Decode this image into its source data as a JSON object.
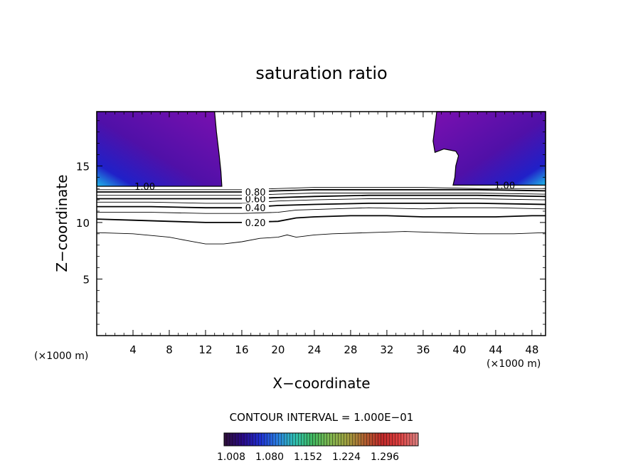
{
  "chart_data": {
    "type": "contour",
    "title": "saturation ratio",
    "xlabel": "X−coordinate",
    "ylabel": "Z−coordinate",
    "x_unit": "(×1000 m)",
    "y_unit": "(×1000 m)",
    "xlim": [
      0,
      49.5
    ],
    "ylim": [
      0,
      19.8
    ],
    "x_ticks": [
      "4",
      "8",
      "12",
      "16",
      "20",
      "24",
      "28",
      "32",
      "36",
      "40",
      "44",
      "48"
    ],
    "y_ticks": [
      "5",
      "10",
      "15"
    ],
    "contour_interval_text": "CONTOUR INTERVAL = 1.000E−01",
    "contour_lines": [
      {
        "value": 0.1,
        "points": [
          [
            0,
            9.1
          ],
          [
            4,
            9.0
          ],
          [
            8,
            8.7
          ],
          [
            10,
            8.4
          ],
          [
            12,
            8.1
          ],
          [
            14,
            8.1
          ],
          [
            16,
            8.3
          ],
          [
            18,
            8.6
          ],
          [
            20,
            8.7
          ],
          [
            21,
            8.9
          ],
          [
            22,
            8.7
          ],
          [
            24,
            8.9
          ],
          [
            26,
            9.0
          ],
          [
            30,
            9.1
          ],
          [
            34,
            9.2
          ],
          [
            38,
            9.1
          ],
          [
            42,
            9.0
          ],
          [
            46,
            9.0
          ],
          [
            49.5,
            9.1
          ]
        ]
      },
      {
        "value": 0.2,
        "points": [
          [
            0,
            10.3
          ],
          [
            4,
            10.2
          ],
          [
            8,
            10.1
          ],
          [
            12,
            10.0
          ],
          [
            16,
            10.0
          ],
          [
            20,
            10.1
          ],
          [
            22,
            10.4
          ],
          [
            24,
            10.5
          ],
          [
            28,
            10.6
          ],
          [
            32,
            10.6
          ],
          [
            36,
            10.5
          ],
          [
            40,
            10.5
          ],
          [
            44,
            10.5
          ],
          [
            48,
            10.6
          ],
          [
            49.5,
            10.6
          ]
        ]
      },
      {
        "value": 0.3,
        "points": [
          [
            0,
            10.9
          ],
          [
            6,
            10.9
          ],
          [
            12,
            10.8
          ],
          [
            16,
            10.8
          ],
          [
            20,
            10.9
          ],
          [
            22,
            11.1
          ],
          [
            26,
            11.2
          ],
          [
            30,
            11.3
          ],
          [
            36,
            11.2
          ],
          [
            40,
            11.3
          ],
          [
            44,
            11.3
          ],
          [
            49.5,
            11.2
          ]
        ]
      },
      {
        "value": 0.4,
        "points": [
          [
            0,
            11.4
          ],
          [
            6,
            11.4
          ],
          [
            12,
            11.3
          ],
          [
            16,
            11.3
          ],
          [
            20,
            11.5
          ],
          [
            24,
            11.6
          ],
          [
            30,
            11.7
          ],
          [
            36,
            11.7
          ],
          [
            42,
            11.7
          ],
          [
            49.5,
            11.6
          ]
        ]
      },
      {
        "value": 0.5,
        "points": [
          [
            0,
            11.8
          ],
          [
            6,
            11.8
          ],
          [
            12,
            11.7
          ],
          [
            16,
            11.7
          ],
          [
            20,
            11.9
          ],
          [
            24,
            12.0
          ],
          [
            30,
            12.1
          ],
          [
            36,
            12.1
          ],
          [
            42,
            12.1
          ],
          [
            49.5,
            12.0
          ]
        ]
      },
      {
        "value": 0.6,
        "points": [
          [
            0,
            12.1
          ],
          [
            6,
            12.1
          ],
          [
            12,
            12.1
          ],
          [
            16,
            12.1
          ],
          [
            20,
            12.2
          ],
          [
            24,
            12.3
          ],
          [
            30,
            12.4
          ],
          [
            36,
            12.4
          ],
          [
            42,
            12.4
          ],
          [
            49.5,
            12.3
          ]
        ]
      },
      {
        "value": 0.7,
        "points": [
          [
            0,
            12.4
          ],
          [
            6,
            12.4
          ],
          [
            12,
            12.4
          ],
          [
            16,
            12.4
          ],
          [
            20,
            12.5
          ],
          [
            24,
            12.6
          ],
          [
            30,
            12.6
          ],
          [
            36,
            12.6
          ],
          [
            42,
            12.6
          ],
          [
            49.5,
            12.5
          ]
        ]
      },
      {
        "value": 0.8,
        "points": [
          [
            0,
            12.7
          ],
          [
            6,
            12.7
          ],
          [
            12,
            12.7
          ],
          [
            16,
            12.7
          ],
          [
            20,
            12.8
          ],
          [
            24,
            12.9
          ],
          [
            30,
            12.9
          ],
          [
            36,
            12.9
          ],
          [
            42,
            12.9
          ],
          [
            49.5,
            12.8
          ]
        ]
      },
      {
        "value": 0.9,
        "points": [
          [
            0,
            12.9
          ],
          [
            6,
            12.9
          ],
          [
            12,
            12.9
          ],
          [
            16,
            12.9
          ],
          [
            20,
            13.0
          ],
          [
            24,
            13.1
          ],
          [
            30,
            13.1
          ],
          [
            36,
            13.1
          ],
          [
            42,
            13.0
          ],
          [
            49.5,
            13.0
          ]
        ]
      }
    ],
    "contour_labels": [
      {
        "text": "0.20",
        "x": 17.5,
        "y": 10.0
      },
      {
        "text": "0.40",
        "x": 17.5,
        "y": 11.3
      },
      {
        "text": "0.60",
        "x": 17.5,
        "y": 12.1
      },
      {
        "text": "0.80",
        "x": 17.5,
        "y": 12.7
      },
      {
        "text": "1.00",
        "x": 5.3,
        "y": 13.2
      },
      {
        "text": "1.00",
        "x": 45.0,
        "y": 13.3
      }
    ],
    "supersaturated_regions": [
      {
        "side": "left",
        "outline": [
          [
            0,
            19.8
          ],
          [
            13.0,
            19.8
          ],
          [
            13.2,
            18.0
          ],
          [
            13.5,
            16.0
          ],
          [
            13.7,
            14.5
          ],
          [
            13.8,
            13.2
          ],
          [
            0,
            13.2
          ]
        ]
      },
      {
        "side": "right",
        "outline": [
          [
            37.5,
            19.8
          ],
          [
            49.5,
            19.8
          ],
          [
            49.5,
            13.3
          ],
          [
            39.3,
            13.3
          ],
          [
            39.5,
            14.0
          ],
          [
            39.6,
            15.0
          ],
          [
            39.9,
            15.9
          ],
          [
            39.6,
            16.3
          ],
          [
            38.3,
            16.5
          ],
          [
            37.3,
            16.2
          ],
          [
            37.1,
            17.2
          ],
          [
            37.3,
            18.5
          ]
        ]
      }
    ],
    "colorbar": {
      "ticks": [
        "1.008",
        "1.080",
        "1.152",
        "1.224",
        "1.296"
      ],
      "colors": [
        "#301040",
        "#2a0a8a",
        "#2030d0",
        "#2a80e0",
        "#30c0b0",
        "#40b860",
        "#80b850",
        "#a0a040",
        "#b06030",
        "#c02a2a",
        "#e04040",
        "#e08080"
      ]
    },
    "fill_colors": {
      "high": "#20b8e8",
      "mid": "#2020c8",
      "low": "#5010a8",
      "base": "#7a10b0"
    }
  }
}
